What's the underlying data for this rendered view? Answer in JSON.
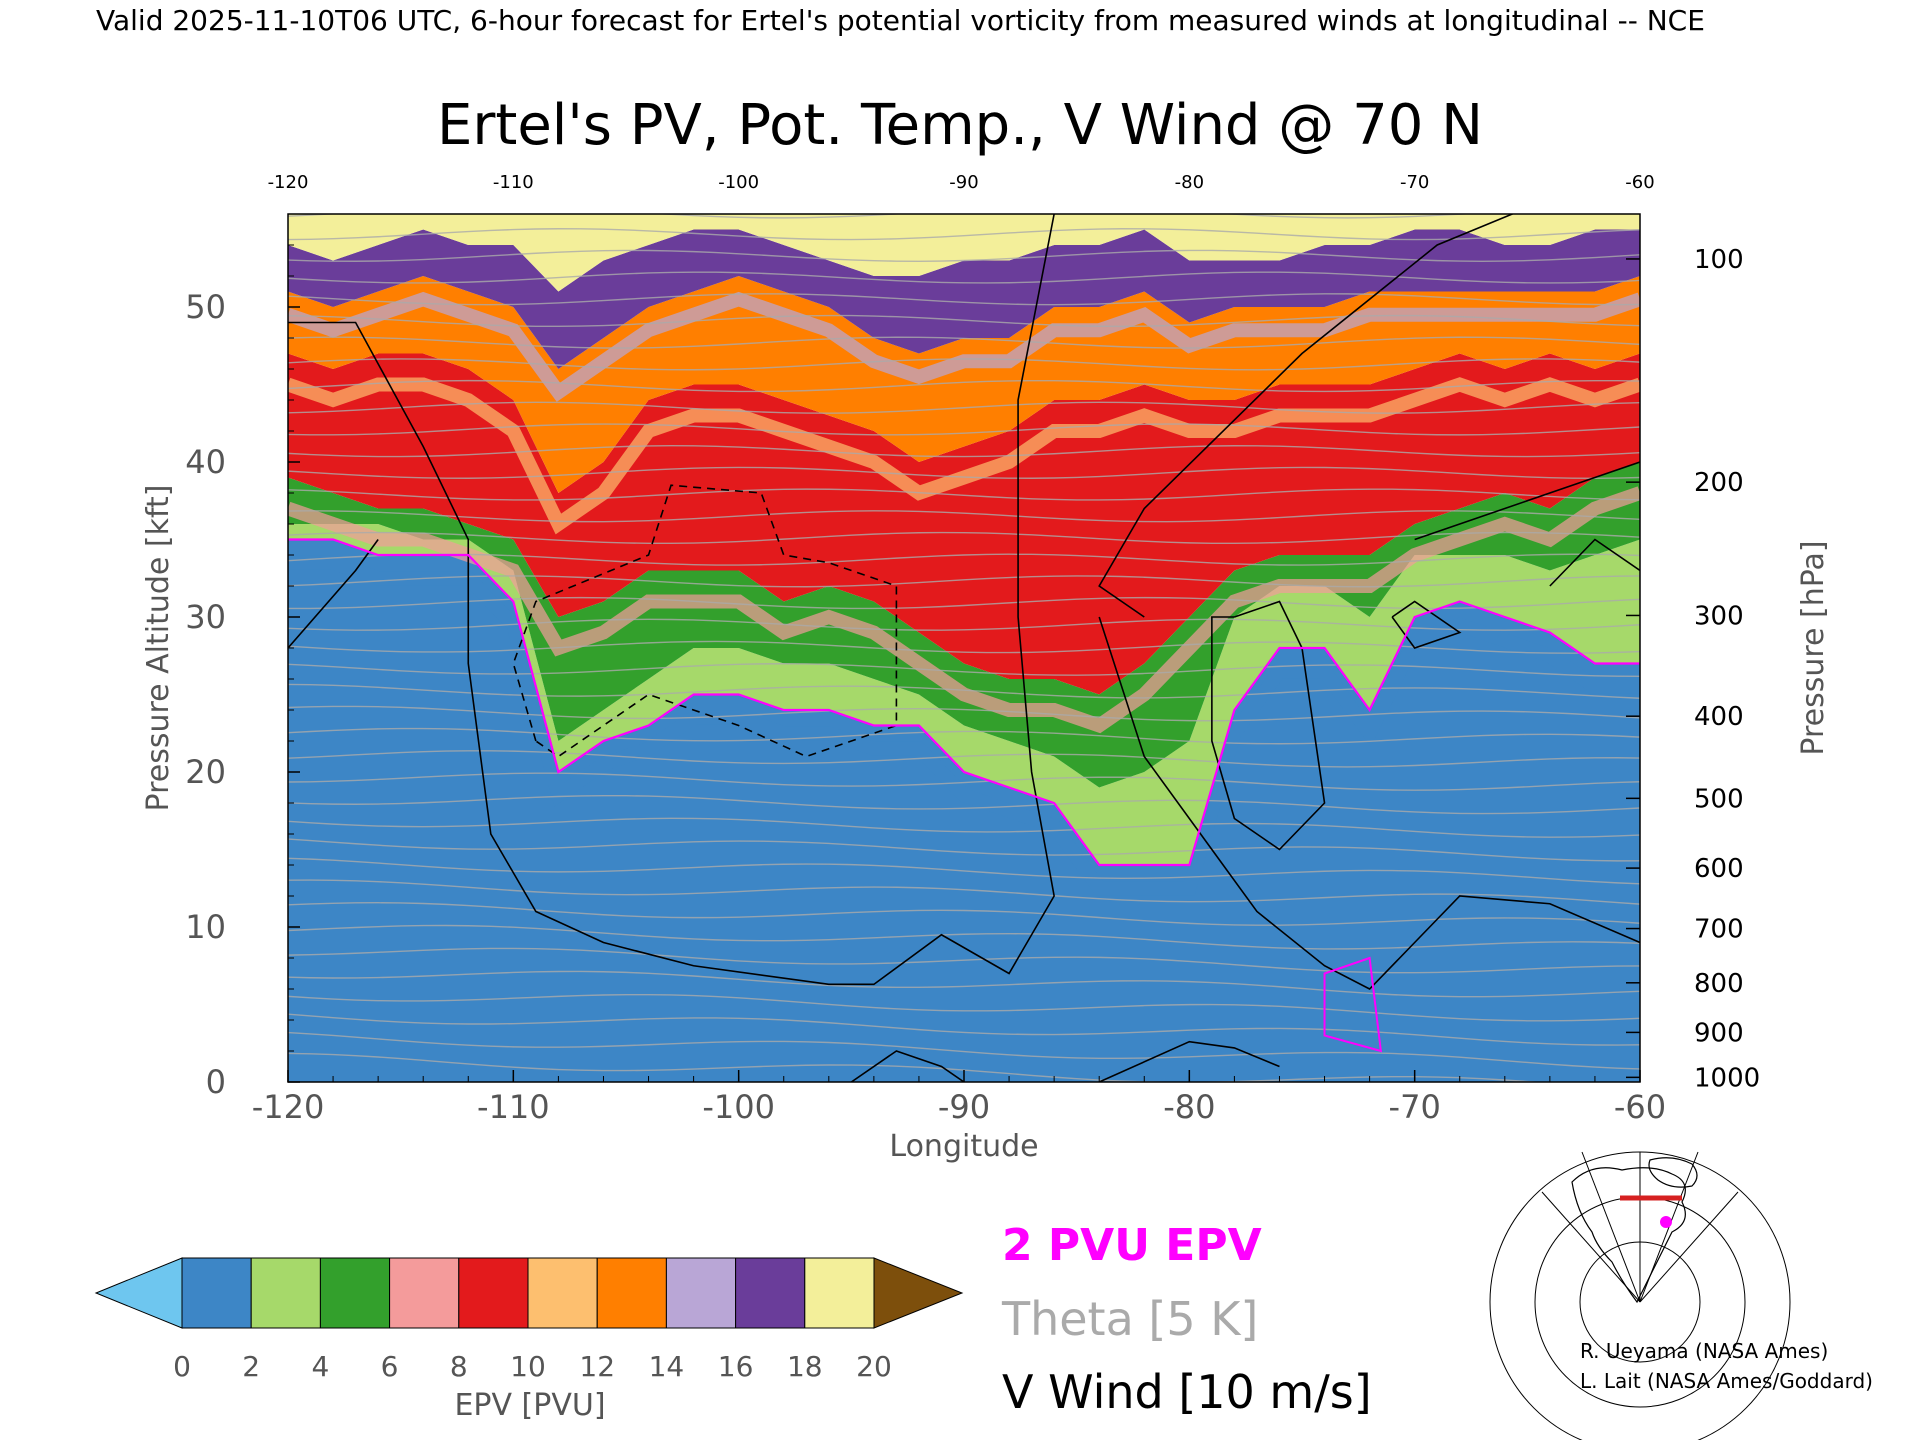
{
  "header": "Valid 2025-11-10T06 UTC, 6-hour forecast for Ertel's potential vorticity from measured winds at longitudinal -- NCE",
  "chart_data": {
    "type": "heatmap",
    "title": "Ertel's PV, Pot. Temp., V Wind @ 70 N",
    "xlabel": "Longitude",
    "ylabel_left": "Pressure Altitude [kft]",
    "ylabel_right": "Pressure [hPa]",
    "xlim": [
      -120,
      -60
    ],
    "ylim": [
      0,
      56
    ],
    "x_ticks": [
      "-120",
      "-110",
      "-100",
      "-90",
      "-80",
      "-70",
      "-60"
    ],
    "x_tick_values": [
      -120,
      -110,
      -100,
      -90,
      -80,
      -70,
      -60
    ],
    "top_ticks": [
      "-120",
      "-110",
      "-100",
      "-90",
      "-80",
      "-70",
      "-60"
    ],
    "y_ticks": [
      "0",
      "10",
      "20",
      "30",
      "40",
      "50"
    ],
    "y_tick_values": [
      0,
      10,
      20,
      30,
      40,
      50
    ],
    "pressure_ticks": [
      {
        "label": "100",
        "kft": 53.1
      },
      {
        "label": "200",
        "kft": 38.7
      },
      {
        "label": "300",
        "kft": 30.1
      },
      {
        "label": "400",
        "kft": 23.6
      },
      {
        "label": "500",
        "kft": 18.3
      },
      {
        "label": "600",
        "kft": 13.8
      },
      {
        "label": "700",
        "kft": 9.9
      },
      {
        "label": "800",
        "kft": 6.4
      },
      {
        "label": "900",
        "kft": 3.2
      },
      {
        "label": "1000",
        "kft": 0.3
      }
    ],
    "epv_levels": {
      "lon": [
        -120,
        -118,
        -116,
        -114,
        -112,
        -110,
        -108,
        -106,
        -104,
        -102,
        -100,
        -98,
        -96,
        -94,
        -92,
        -90,
        -88,
        -86,
        -84,
        -82,
        -80,
        -78,
        -76,
        -74,
        -72,
        -70,
        -68,
        -66,
        -64,
        -62,
        -60
      ],
      "pvu2_kft": [
        35,
        35,
        34,
        34,
        34,
        31,
        20,
        22,
        23,
        25,
        25,
        24,
        24,
        23,
        23,
        20,
        19,
        18,
        14,
        14,
        14,
        24,
        28,
        28,
        24,
        30,
        31,
        30,
        29,
        27,
        27
      ],
      "pvu4_kft": [
        36,
        36,
        36,
        35,
        35,
        33,
        22,
        24,
        26,
        28,
        28,
        27,
        27,
        26,
        25,
        23,
        22,
        21,
        19,
        20,
        22,
        30,
        32,
        32,
        30,
        34,
        34,
        34,
        33,
        34,
        35
      ],
      "pvu7_kft": [
        39,
        38,
        37,
        37,
        36,
        35,
        30,
        31,
        33,
        33,
        33,
        31,
        32,
        31,
        29,
        27,
        26,
        26,
        25,
        27,
        30,
        33,
        34,
        34,
        34,
        36,
        37,
        38,
        37,
        39,
        40
      ],
      "pvu12_kft": [
        47,
        46,
        47,
        47,
        46,
        44,
        38,
        40,
        44,
        45,
        45,
        44,
        43,
        42,
        40,
        41,
        42,
        44,
        44,
        45,
        44,
        44,
        45,
        45,
        45,
        46,
        47,
        46,
        47,
        46,
        47
      ],
      "pvu14_kft": [
        51,
        50,
        51,
        52,
        51,
        50,
        46,
        48,
        50,
        51,
        52,
        51,
        50,
        48,
        47,
        48,
        48,
        50,
        50,
        51,
        49,
        50,
        50,
        50,
        51,
        51,
        51,
        51,
        51,
        51,
        52
      ],
      "pvu18_kft": [
        54,
        53,
        54,
        55,
        54,
        54,
        51,
        53,
        54,
        55,
        55,
        54,
        53,
        52,
        52,
        53,
        53,
        54,
        54,
        55,
        53,
        53,
        53,
        54,
        54,
        55,
        55,
        54,
        54,
        55,
        55
      ]
    },
    "colorbar": {
      "label": "EPV [PVU]",
      "ticks": [
        "0",
        "2",
        "4",
        "6",
        "8",
        "10",
        "12",
        "14",
        "16",
        "18",
        "20"
      ],
      "colors": [
        "#6ec6ef",
        "#3d86c6",
        "#a6d96a",
        "#33a02c",
        "#f49b9b",
        "#e31a1c",
        "#fdbf6f",
        "#ff7f00",
        "#b9a6d6",
        "#6a3d9a",
        "#f3ef9a",
        "#7d4f0c"
      ]
    },
    "contour_colors": {
      "epv2": "#ff00ff",
      "theta": "#aaaaaa",
      "vwind": "#000000"
    },
    "legend": {
      "pvu": "2 PVU EPV",
      "theta": "Theta [5 K]",
      "vwind": "V Wind [10 m/s]"
    }
  },
  "credits": {
    "line1": "R. Ueyama (NASA Ames)",
    "line2": "L. Lait (NASA Ames/Goddard)"
  }
}
